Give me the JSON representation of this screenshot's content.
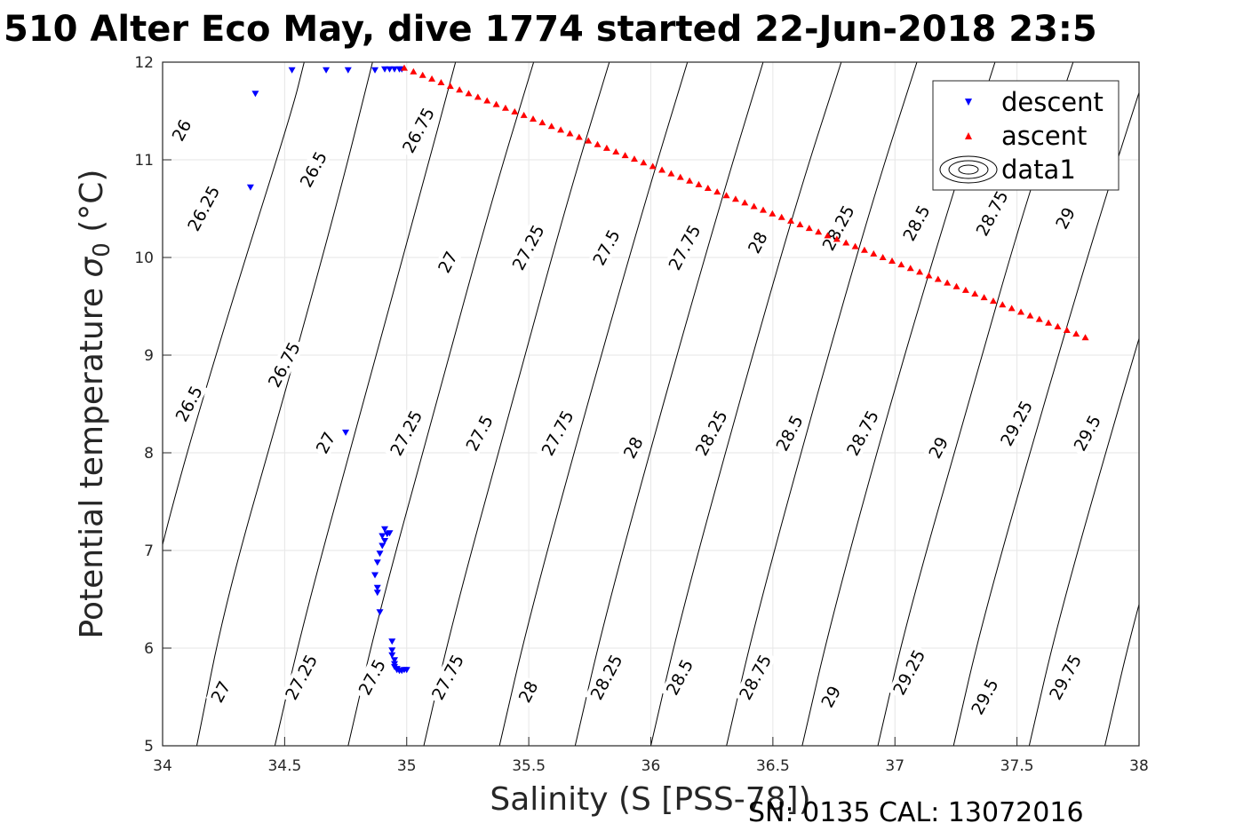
{
  "title": "510 Alter Eco May, dive 1774 started 22-Jun-2018 23:5",
  "footer": "SN: 0135  CAL: 13072016",
  "chart_data": {
    "type": "scatter",
    "xlabel": "Salinity (S [PSS-78])",
    "ylabel_prefix": "Potential temperature ",
    "ylabel_sym": "σ",
    "ylabel_sub": "0",
    "ylabel_suffix": " (°C)",
    "xlim": [
      34,
      38
    ],
    "ylim": [
      5,
      12
    ],
    "xticks": [
      34,
      34.5,
      35,
      35.5,
      36,
      36.5,
      37,
      37.5,
      38
    ],
    "xtick_labels": [
      "34",
      "34.5",
      "35",
      "35.5",
      "36",
      "36.5",
      "37",
      "37.5",
      "38"
    ],
    "yticks": [
      5,
      6,
      7,
      8,
      9,
      10,
      11,
      12
    ],
    "ytick_labels": [
      "5",
      "6",
      "7",
      "8",
      "9",
      "10",
      "11",
      "12"
    ],
    "grid": true,
    "legend_position": "top-right",
    "series": [
      {
        "name": "descent",
        "marker": "triangle-down",
        "color": "#0000ff",
        "points": [
          [
            34.36,
            10.72
          ],
          [
            34.38,
            11.68
          ],
          [
            34.53,
            11.92
          ],
          [
            34.67,
            11.92
          ],
          [
            34.76,
            11.92
          ],
          [
            34.87,
            11.92
          ],
          [
            34.91,
            11.93
          ],
          [
            34.93,
            11.93
          ],
          [
            34.95,
            11.93
          ],
          [
            34.97,
            11.93
          ],
          [
            34.98,
            11.93
          ],
          [
            34.75,
            8.21
          ],
          [
            34.91,
            7.22
          ],
          [
            34.92,
            7.17
          ],
          [
            34.9,
            7.15
          ],
          [
            34.93,
            7.18
          ],
          [
            34.91,
            7.1
          ],
          [
            34.9,
            7.05
          ],
          [
            34.89,
            6.97
          ],
          [
            34.88,
            6.88
          ],
          [
            34.87,
            6.75
          ],
          [
            34.88,
            6.62
          ],
          [
            34.88,
            6.57
          ],
          [
            34.89,
            6.37
          ],
          [
            34.94,
            6.07
          ],
          [
            34.94,
            5.98
          ],
          [
            34.94,
            5.93
          ],
          [
            34.95,
            5.88
          ],
          [
            34.95,
            5.84
          ],
          [
            34.95,
            5.81
          ],
          [
            34.96,
            5.79
          ],
          [
            34.96,
            5.78
          ],
          [
            34.97,
            5.77
          ],
          [
            34.98,
            5.77
          ],
          [
            34.99,
            5.78
          ],
          [
            35.0,
            5.78
          ]
        ]
      },
      {
        "name": "ascent",
        "marker": "triangle-up",
        "color": "#ff0000",
        "line_from": [
          34.99,
          11.94
        ],
        "line_to": [
          37.78,
          9.18
        ],
        "count": 75,
        "points": [
          [
            34.99,
            11.94
          ],
          [
            37.78,
            9.18
          ]
        ]
      },
      {
        "name": "data1",
        "marker": "contour-icon"
      }
    ],
    "contour_levels": [
      "26",
      "26.25",
      "26.5",
      "26.75",
      "27",
      "27.25",
      "27.5",
      "27.75",
      "28",
      "28.25",
      "28.5",
      "28.75",
      "29",
      "29.25",
      "29.5",
      "29.75"
    ],
    "contour_lines": [
      [
        34.58,
        12.0
      ],
      [
        34.53,
        11.5
      ],
      [
        34.29,
        9.6
      ],
      [
        34.04,
        7.5
      ],
      [
        33.9,
        6.0
      ],
      [
        34.86,
        12.0
      ],
      [
        34.72,
        10.6
      ],
      [
        34.5,
        8.6
      ],
      [
        34.26,
        6.5
      ],
      [
        34.14,
        5.0
      ],
      [
        35.2,
        12.0
      ],
      [
        35.05,
        10.6
      ],
      [
        34.82,
        8.5
      ],
      [
        34.58,
        6.3
      ],
      [
        34.46,
        5.0
      ],
      [
        35.52,
        12.0
      ],
      [
        35.35,
        10.6
      ],
      [
        35.12,
        8.5
      ],
      [
        34.88,
        6.3
      ],
      [
        34.76,
        5.0
      ],
      [
        35.83,
        12.0
      ],
      [
        35.66,
        10.6
      ],
      [
        35.43,
        8.5
      ],
      [
        35.19,
        6.3
      ],
      [
        35.07,
        5.0
      ],
      [
        36.15,
        12.0
      ],
      [
        35.98,
        10.6
      ],
      [
        35.74,
        8.5
      ],
      [
        35.5,
        6.3
      ],
      [
        35.38,
        5.0
      ],
      [
        36.46,
        12.0
      ],
      [
        36.29,
        10.6
      ],
      [
        36.05,
        8.5
      ],
      [
        35.81,
        6.3
      ],
      [
        35.69,
        5.0
      ],
      [
        36.78,
        12.0
      ],
      [
        36.6,
        10.6
      ],
      [
        36.36,
        8.5
      ],
      [
        36.12,
        6.3
      ],
      [
        36.0,
        5.0
      ],
      [
        37.09,
        12.0
      ],
      [
        36.91,
        10.6
      ],
      [
        36.67,
        8.5
      ],
      [
        36.43,
        6.3
      ],
      [
        36.31,
        5.0
      ],
      [
        37.41,
        12.0
      ],
      [
        37.23,
        10.6
      ],
      [
        36.98,
        8.5
      ],
      [
        36.74,
        6.3
      ],
      [
        36.62,
        5.0
      ],
      [
        37.73,
        12.0
      ],
      [
        37.54,
        10.6
      ],
      [
        37.3,
        8.5
      ],
      [
        37.05,
        6.3
      ],
      [
        36.93,
        5.0
      ],
      [
        38.04,
        12.0
      ],
      [
        37.86,
        10.6
      ],
      [
        37.61,
        8.5
      ],
      [
        37.36,
        6.3
      ],
      [
        37.24,
        5.0
      ],
      [
        38.36,
        12.0
      ],
      [
        38.17,
        10.6
      ],
      [
        37.92,
        8.5
      ],
      [
        37.67,
        6.3
      ],
      [
        37.55,
        5.0
      ],
      [
        38.67,
        12.0
      ],
      [
        38.48,
        10.6
      ],
      [
        38.23,
        8.5
      ],
      [
        37.98,
        6.3
      ],
      [
        37.86,
        5.0
      ]
    ],
    "contour_labels": [
      {
        "text": "26",
        "x": 34.08,
        "y": 11.3
      },
      {
        "text": "26.25",
        "x": 34.17,
        "y": 10.5
      },
      {
        "text": "26.5",
        "x": 34.62,
        "y": 10.9
      },
      {
        "text": "26.75",
        "x": 35.05,
        "y": 11.3
      },
      {
        "text": "26.5",
        "x": 34.11,
        "y": 8.5
      },
      {
        "text": "26.75",
        "x": 34.5,
        "y": 8.9
      },
      {
        "text": "27",
        "x": 35.17,
        "y": 9.95
      },
      {
        "text": "27.25",
        "x": 35.5,
        "y": 10.1
      },
      {
        "text": "27.5",
        "x": 35.82,
        "y": 10.1
      },
      {
        "text": "27.75",
        "x": 36.14,
        "y": 10.1
      },
      {
        "text": "28",
        "x": 36.44,
        "y": 10.15
      },
      {
        "text": "28.25",
        "x": 36.77,
        "y": 10.3
      },
      {
        "text": "28.5",
        "x": 37.09,
        "y": 10.35
      },
      {
        "text": "28.75",
        "x": 37.4,
        "y": 10.45
      },
      {
        "text": "29",
        "x": 37.7,
        "y": 10.4
      },
      {
        "text": "27",
        "x": 34.67,
        "y": 8.1
      },
      {
        "text": "27.25",
        "x": 35.0,
        "y": 8.2
      },
      {
        "text": "27.5",
        "x": 35.3,
        "y": 8.2
      },
      {
        "text": "27.75",
        "x": 35.62,
        "y": 8.2
      },
      {
        "text": "28",
        "x": 35.93,
        "y": 8.05
      },
      {
        "text": "28.25",
        "x": 36.25,
        "y": 8.2
      },
      {
        "text": "28.5",
        "x": 36.57,
        "y": 8.2
      },
      {
        "text": "28.75",
        "x": 36.87,
        "y": 8.2
      },
      {
        "text": "29",
        "x": 37.18,
        "y": 8.05
      },
      {
        "text": "29.25",
        "x": 37.5,
        "y": 8.3
      },
      {
        "text": "29.5",
        "x": 37.79,
        "y": 8.2
      },
      {
        "text": "27",
        "x": 34.24,
        "y": 5.55
      },
      {
        "text": "27.25",
        "x": 34.57,
        "y": 5.7
      },
      {
        "text": "27.5",
        "x": 34.86,
        "y": 5.7
      },
      {
        "text": "27.75",
        "x": 35.17,
        "y": 5.7
      },
      {
        "text": "28",
        "x": 35.5,
        "y": 5.55
      },
      {
        "text": "28.25",
        "x": 35.82,
        "y": 5.7
      },
      {
        "text": "28.5",
        "x": 36.12,
        "y": 5.7
      },
      {
        "text": "28.75",
        "x": 36.43,
        "y": 5.7
      },
      {
        "text": "29",
        "x": 36.74,
        "y": 5.5
      },
      {
        "text": "29.25",
        "x": 37.06,
        "y": 5.75
      },
      {
        "text": "29.5",
        "x": 37.37,
        "y": 5.5
      },
      {
        "text": "29.75",
        "x": 37.7,
        "y": 5.7
      }
    ]
  }
}
